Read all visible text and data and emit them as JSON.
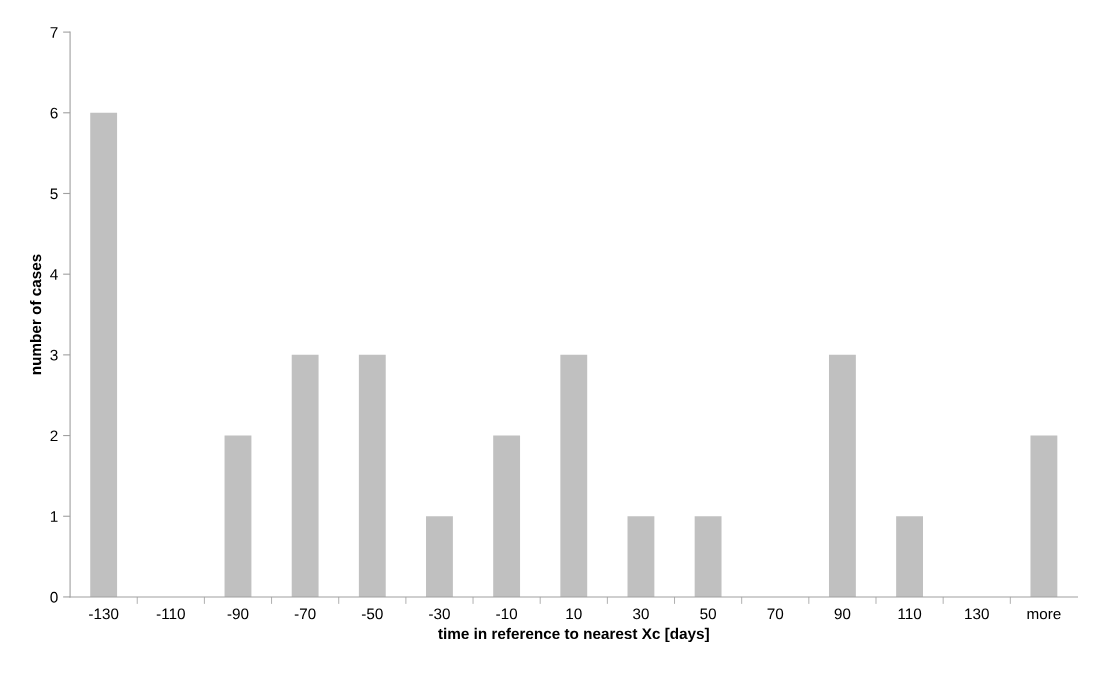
{
  "chart_data": {
    "type": "bar",
    "xlabel": "time in reference to nearest Xc [days]",
    "ylabel": "number of cases",
    "categories": [
      "-130",
      "-110",
      "-90",
      "-70",
      "-50",
      "-30",
      "-10",
      "10",
      "30",
      "50",
      "70",
      "90",
      "110",
      "130",
      "more"
    ],
    "values": [
      6,
      0,
      2,
      3,
      3,
      1,
      2,
      3,
      1,
      1,
      0,
      3,
      1,
      0,
      2
    ],
    "color": "#c0c0c0",
    "ylim": [
      0,
      7
    ],
    "yticks": [
      0,
      1,
      2,
      3,
      4,
      5,
      6,
      7
    ],
    "grid": false,
    "legend": false
  }
}
